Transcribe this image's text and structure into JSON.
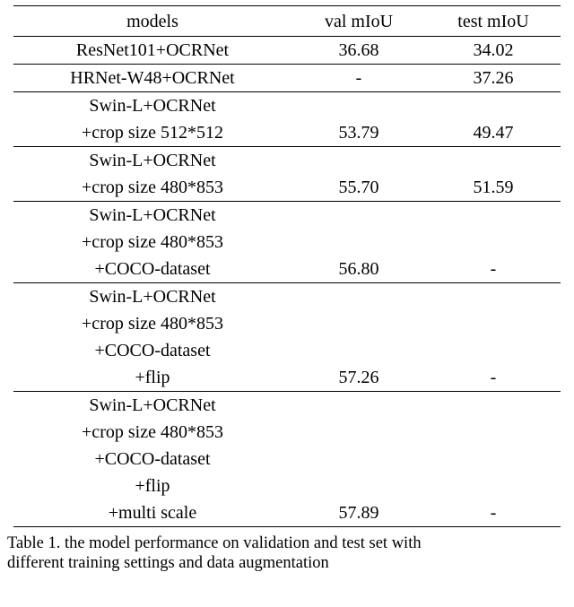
{
  "table": {
    "header": {
      "models": "models",
      "val": "val mIoU",
      "test": "test mIoU"
    },
    "column_alignment": [
      "center",
      "center",
      "center"
    ],
    "rule_color": "#000000",
    "background_color": "#ffffff",
    "text_color": "#000000",
    "font_family": "Times New Roman",
    "font_size_pt": 15,
    "rows": [
      {
        "models_lines": [
          "ResNet101+OCRNet"
        ],
        "val": "36.68",
        "test": "34.02",
        "rule": true
      },
      {
        "models_lines": [
          "HRNet-W48+OCRNet"
        ],
        "val": "-",
        "test": "37.26",
        "rule": true
      },
      {
        "models_lines": [
          "Swin-L+OCRNet",
          "+crop size 512*512"
        ],
        "val": "53.79",
        "test": "49.47",
        "rule": true
      },
      {
        "models_lines": [
          "Swin-L+OCRNet",
          "+crop size 480*853"
        ],
        "val": "55.70",
        "test": "51.59",
        "rule": true
      },
      {
        "models_lines": [
          "Swin-L+OCRNet",
          "+crop size 480*853",
          "+COCO-dataset"
        ],
        "val": "56.80",
        "test": "-",
        "rule": true
      },
      {
        "models_lines": [
          "Swin-L+OCRNet",
          "+crop size 480*853",
          "+COCO-dataset",
          "+flip"
        ],
        "val": "57.26",
        "test": "-",
        "rule": true
      },
      {
        "models_lines": [
          "Swin-L+OCRNet",
          "+crop size 480*853",
          "+COCO-dataset",
          "+flip",
          "+multi scale"
        ],
        "val": "57.89",
        "test": "-",
        "rule": true
      }
    ]
  },
  "caption": {
    "label": "Table 1.",
    "text_line1": "the model performance on validation and test set with",
    "text_line2": "different training settings and data augmentation",
    "font_size_pt": 14,
    "text_color": "#000000"
  }
}
